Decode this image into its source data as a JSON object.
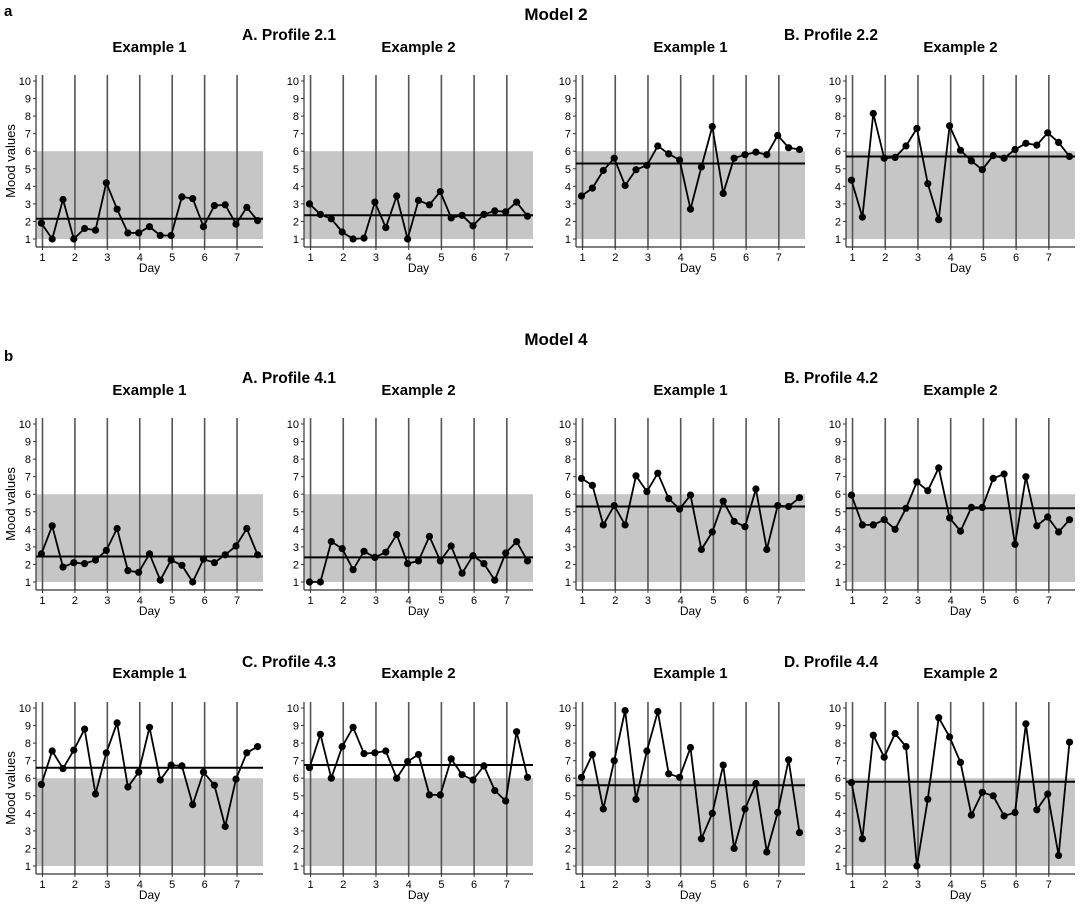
{
  "figure": {
    "panel_a": "a",
    "panel_b": "b",
    "model_2_title": "Model 2",
    "model_4_title": "Model 4",
    "profile_2_1": "A. Profile 2.1",
    "profile_2_2": "B. Profile 2.2",
    "profile_4_1": "A. Profile 4.1",
    "profile_4_2": "B. Profile 4.2",
    "profile_4_3": "C. Profile 4.3",
    "profile_4_4": "D. Profile 4.4",
    "y_axis_label": "Mood values"
  },
  "colors": {
    "band": "#c6c6c6",
    "line": "#000000",
    "vline": "#555555",
    "axis": "#333333"
  },
  "chart_data": [
    {
      "type": "line",
      "title": "Example 1",
      "xlabel": "Day",
      "ylabel": "Mood values",
      "ylim": [
        1,
        10
      ],
      "xlim": [
        0.8,
        7.8
      ],
      "x_ticks": [
        "1",
        "2",
        "3",
        "4",
        "5",
        "6",
        "7"
      ],
      "y_ticks": [
        "1",
        "2",
        "3",
        "4",
        "5",
        "6",
        "7",
        "8",
        "9",
        "10"
      ],
      "band": [
        1,
        6
      ],
      "mean": 2.15,
      "values": [
        1.9,
        1.0,
        3.25,
        1.0,
        1.6,
        1.5,
        4.2,
        2.7,
        1.35,
        1.35,
        1.7,
        1.2,
        1.2,
        3.4,
        3.3,
        1.7,
        2.9,
        2.95,
        1.85,
        2.8,
        2.05
      ]
    },
    {
      "type": "line",
      "title": "Example 2",
      "xlabel": "Day",
      "ylabel": "",
      "ylim": [
        1,
        10
      ],
      "xlim": [
        0.8,
        7.8
      ],
      "x_ticks": [
        "1",
        "2",
        "3",
        "4",
        "5",
        "6",
        "7"
      ],
      "y_ticks": [
        "1",
        "2",
        "3",
        "4",
        "5",
        "6",
        "7",
        "8",
        "9",
        "10"
      ],
      "band": [
        1,
        6
      ],
      "mean": 2.35,
      "values": [
        3.0,
        2.4,
        2.15,
        1.4,
        1.0,
        1.05,
        3.1,
        1.65,
        3.45,
        1.0,
        3.2,
        2.95,
        3.7,
        2.2,
        2.35,
        1.75,
        2.4,
        2.6,
        2.55,
        3.1,
        2.3
      ]
    },
    {
      "type": "line",
      "title": "Example 1",
      "xlabel": "Day",
      "ylabel": "",
      "ylim": [
        1,
        10
      ],
      "xlim": [
        0.8,
        7.8
      ],
      "x_ticks": [
        "1",
        "2",
        "3",
        "4",
        "5",
        "6",
        "7"
      ],
      "y_ticks": [
        "1",
        "2",
        "3",
        "4",
        "5",
        "6",
        "7",
        "8",
        "9",
        "10"
      ],
      "band": [
        1,
        6
      ],
      "mean": 5.3,
      "values": [
        3.45,
        3.9,
        4.9,
        5.6,
        4.05,
        4.95,
        5.2,
        6.3,
        5.85,
        5.5,
        2.7,
        5.1,
        7.4,
        3.6,
        5.6,
        5.8,
        5.95,
        5.8,
        6.9,
        6.2,
        6.1
      ]
    },
    {
      "type": "line",
      "title": "Example 2",
      "xlabel": "Day",
      "ylabel": "",
      "ylim": [
        1,
        10
      ],
      "xlim": [
        0.8,
        7.8
      ],
      "x_ticks": [
        "1",
        "2",
        "3",
        "4",
        "5",
        "6",
        "7"
      ],
      "y_ticks": [
        "1",
        "2",
        "3",
        "4",
        "5",
        "6",
        "7",
        "8",
        "9",
        "10"
      ],
      "band": [
        1,
        6
      ],
      "mean": 5.7,
      "values": [
        4.35,
        2.25,
        8.15,
        5.6,
        5.65,
        6.3,
        7.3,
        4.15,
        2.1,
        7.45,
        6.05,
        5.45,
        4.95,
        5.75,
        5.6,
        6.1,
        6.45,
        6.35,
        7.05,
        6.5,
        5.7
      ]
    },
    {
      "type": "line",
      "title": "Example 1",
      "xlabel": "Day",
      "ylabel": "Mood values",
      "ylim": [
        1,
        10
      ],
      "xlim": [
        0.8,
        7.8
      ],
      "x_ticks": [
        "1",
        "2",
        "3",
        "4",
        "5",
        "6",
        "7"
      ],
      "y_ticks": [
        "1",
        "2",
        "3",
        "4",
        "5",
        "6",
        "7",
        "8",
        "9",
        "10"
      ],
      "band": [
        1,
        6
      ],
      "mean": 2.45,
      "values": [
        2.6,
        4.2,
        1.85,
        2.1,
        2.05,
        2.25,
        2.8,
        4.05,
        1.65,
        1.55,
        2.6,
        1.1,
        2.25,
        1.95,
        1.0,
        2.3,
        2.1,
        2.55,
        3.05,
        4.05,
        2.55
      ]
    },
    {
      "type": "line",
      "title": "Example 2",
      "xlabel": "Day",
      "ylabel": "",
      "ylim": [
        1,
        10
      ],
      "xlim": [
        0.8,
        7.8
      ],
      "x_ticks": [
        "1",
        "2",
        "3",
        "4",
        "5",
        "6",
        "7"
      ],
      "y_ticks": [
        "1",
        "2",
        "3",
        "4",
        "5",
        "6",
        "7",
        "8",
        "9",
        "10"
      ],
      "band": [
        1,
        6
      ],
      "mean": 2.4,
      "values": [
        1.0,
        1.0,
        3.3,
        2.9,
        1.7,
        2.75,
        2.4,
        2.7,
        3.7,
        2.05,
        2.2,
        3.6,
        2.2,
        3.05,
        1.5,
        2.5,
        2.05,
        1.1,
        2.65,
        3.3,
        2.2
      ]
    },
    {
      "type": "line",
      "title": "Example 1",
      "xlabel": "Day",
      "ylabel": "",
      "ylim": [
        1,
        10
      ],
      "xlim": [
        0.8,
        7.8
      ],
      "x_ticks": [
        "1",
        "2",
        "3",
        "4",
        "5",
        "6",
        "7"
      ],
      "y_ticks": [
        "1",
        "2",
        "3",
        "4",
        "5",
        "6",
        "7",
        "8",
        "9",
        "10"
      ],
      "band": [
        1,
        6
      ],
      "mean": 5.3,
      "values": [
        6.9,
        6.5,
        4.25,
        5.35,
        4.25,
        7.05,
        6.15,
        7.2,
        5.75,
        5.15,
        5.95,
        2.85,
        3.85,
        5.6,
        4.45,
        4.15,
        6.3,
        2.85,
        5.35,
        5.3,
        5.8
      ]
    },
    {
      "type": "line",
      "title": "Example 2",
      "xlabel": "Day",
      "ylabel": "",
      "ylim": [
        1,
        10
      ],
      "xlim": [
        0.8,
        7.8
      ],
      "x_ticks": [
        "1",
        "2",
        "3",
        "4",
        "5",
        "6",
        "7"
      ],
      "y_ticks": [
        "1",
        "2",
        "3",
        "4",
        "5",
        "6",
        "7",
        "8",
        "9",
        "10"
      ],
      "band": [
        1,
        6
      ],
      "mean": 5.2,
      "values": [
        5.95,
        4.25,
        4.25,
        4.55,
        4.0,
        5.2,
        6.7,
        6.2,
        7.5,
        4.65,
        3.9,
        5.25,
        5.25,
        6.9,
        7.15,
        3.15,
        7.0,
        4.2,
        4.7,
        3.85,
        4.55
      ]
    },
    {
      "type": "line",
      "title": "Example 1",
      "xlabel": "Day",
      "ylabel": "Mood values",
      "ylim": [
        1,
        10
      ],
      "xlim": [
        0.8,
        7.8
      ],
      "x_ticks": [
        "1",
        "2",
        "3",
        "4",
        "5",
        "6",
        "7"
      ],
      "y_ticks": [
        "1",
        "2",
        "3",
        "4",
        "5",
        "6",
        "7",
        "8",
        "9",
        "10"
      ],
      "band": [
        1,
        6
      ],
      "mean": 6.6,
      "values": [
        5.65,
        7.55,
        6.55,
        7.6,
        8.8,
        5.1,
        7.45,
        9.15,
        5.5,
        6.35,
        8.9,
        5.9,
        6.75,
        6.7,
        4.5,
        6.35,
        5.6,
        3.25,
        5.95,
        7.45,
        7.8
      ]
    },
    {
      "type": "line",
      "title": "Example 2",
      "xlabel": "Day",
      "ylabel": "",
      "ylim": [
        1,
        10
      ],
      "xlim": [
        0.8,
        7.8
      ],
      "x_ticks": [
        "1",
        "2",
        "3",
        "4",
        "5",
        "6",
        "7"
      ],
      "y_ticks": [
        "1",
        "2",
        "3",
        "4",
        "5",
        "6",
        "7",
        "8",
        "9",
        "10"
      ],
      "band": [
        1,
        6
      ],
      "mean": 6.75,
      "values": [
        6.6,
        8.5,
        6.0,
        7.8,
        8.9,
        7.4,
        7.45,
        7.55,
        6.0,
        6.95,
        7.35,
        5.05,
        5.05,
        7.1,
        6.2,
        5.9,
        6.7,
        5.3,
        4.7,
        8.65,
        6.05
      ]
    },
    {
      "type": "line",
      "title": "Example 1",
      "xlabel": "Day",
      "ylabel": "",
      "ylim": [
        1,
        10
      ],
      "xlim": [
        0.8,
        7.8
      ],
      "x_ticks": [
        "1",
        "2",
        "3",
        "4",
        "5",
        "6",
        "7"
      ],
      "y_ticks": [
        "1",
        "2",
        "3",
        "4",
        "5",
        "6",
        "7",
        "8",
        "9",
        "10"
      ],
      "band": [
        1,
        6
      ],
      "mean": 5.6,
      "values": [
        6.05,
        7.35,
        4.25,
        7.0,
        9.85,
        4.8,
        7.55,
        9.8,
        6.25,
        6.05,
        7.75,
        2.55,
        4.0,
        6.75,
        2.0,
        4.25,
        5.7,
        1.8,
        4.05,
        7.05,
        2.9
      ]
    },
    {
      "type": "line",
      "title": "Example 2",
      "xlabel": "Day",
      "ylabel": "",
      "ylim": [
        1,
        10
      ],
      "xlim": [
        0.8,
        7.8
      ],
      "x_ticks": [
        "1",
        "2",
        "3",
        "4",
        "5",
        "6",
        "7"
      ],
      "y_ticks": [
        "1",
        "2",
        "3",
        "4",
        "5",
        "6",
        "7",
        "8",
        "9",
        "10"
      ],
      "band": [
        1,
        6
      ],
      "mean": 5.8,
      "values": [
        5.75,
        2.55,
        8.45,
        7.2,
        8.55,
        7.8,
        1.0,
        4.8,
        9.45,
        8.35,
        6.9,
        3.9,
        5.2,
        5.0,
        3.85,
        4.05,
        9.1,
        4.2,
        5.1,
        1.6,
        8.05
      ]
    }
  ]
}
